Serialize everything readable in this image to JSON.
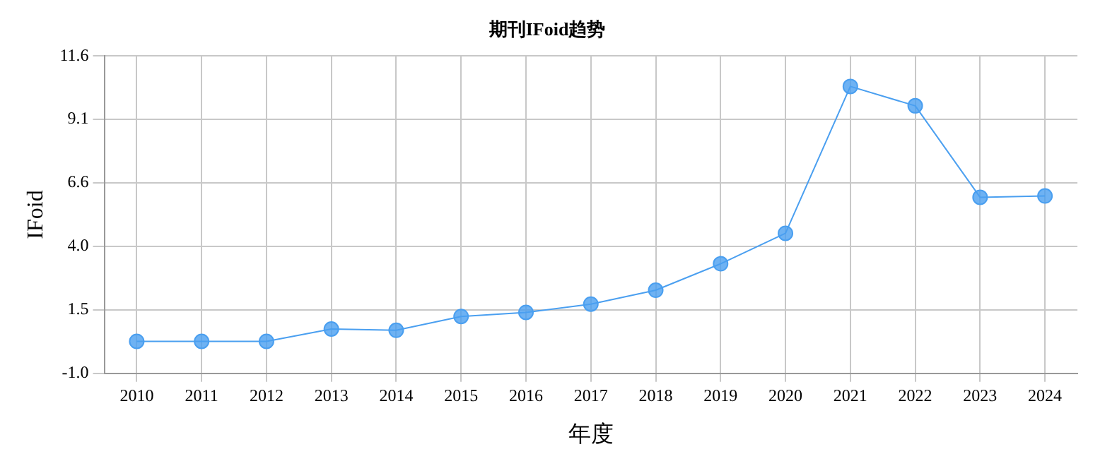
{
  "chart_data": {
    "type": "line",
    "title": "期刊IFoid趋势",
    "xlabel": "年度",
    "ylabel": "IFoid",
    "categories": [
      "2010",
      "2011",
      "2012",
      "2013",
      "2014",
      "2015",
      "2016",
      "2017",
      "2018",
      "2019",
      "2020",
      "2021",
      "2022",
      "2023",
      "2024"
    ],
    "series": [
      {
        "color": "#4a9ff0",
        "values": [
          0.27,
          0.27,
          0.27,
          0.76,
          0.71,
          1.26,
          1.42,
          1.75,
          2.3,
          3.35,
          4.56,
          10.39,
          9.62,
          5.99,
          6.04
        ]
      }
    ],
    "ylim": [
      -1.0,
      11.6
    ],
    "yticks": [
      {
        "value": -1.0,
        "label": "-1.0"
      },
      {
        "value": 1.52,
        "label": "1.5"
      },
      {
        "value": 4.04,
        "label": "4.0"
      },
      {
        "value": 6.56,
        "label": "6.6"
      },
      {
        "value": 9.08,
        "label": "9.1"
      },
      {
        "value": 11.6,
        "label": "11.6"
      }
    ],
    "grid": true,
    "marker": "circle",
    "line_style": "solid",
    "legend": false
  }
}
